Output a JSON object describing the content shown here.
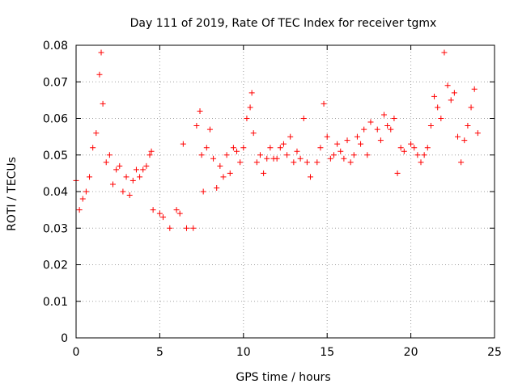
{
  "chart_data": {
    "type": "scatter",
    "title": "Day 111 of 2019, Rate Of TEC Index for receiver tgmx",
    "xlabel": "GPS time / hours",
    "ylabel": "ROTI / TECUs",
    "xlim": [
      0,
      25
    ],
    "ylim": [
      0,
      0.08
    ],
    "xticks": [
      "0",
      "5",
      "10",
      "15",
      "20",
      "25"
    ],
    "yticks": [
      "0",
      "0.01",
      "0.02",
      "0.03",
      "0.04",
      "0.05",
      "0.06",
      "0.07",
      "0.08"
    ],
    "grid": true,
    "marker": "+",
    "color": "#ff0000",
    "series": [
      {
        "name": "ROTI",
        "x": [
          0.0,
          0.2,
          0.4,
          0.6,
          0.8,
          1.0,
          1.2,
          1.4,
          1.5,
          1.6,
          1.8,
          2.0,
          2.2,
          2.4,
          2.6,
          2.8,
          3.0,
          3.2,
          3.4,
          3.6,
          3.8,
          4.0,
          4.2,
          4.4,
          4.5,
          4.6,
          5.0,
          5.2,
          5.6,
          6.0,
          6.2,
          6.4,
          6.6,
          7.0,
          7.2,
          7.4,
          7.5,
          7.6,
          7.8,
          8.0,
          8.2,
          8.4,
          8.6,
          8.8,
          9.0,
          9.2,
          9.4,
          9.6,
          9.8,
          10.0,
          10.2,
          10.4,
          10.5,
          10.6,
          10.8,
          11.0,
          11.2,
          11.4,
          11.6,
          11.8,
          12.0,
          12.2,
          12.4,
          12.6,
          12.8,
          13.0,
          13.2,
          13.4,
          13.6,
          13.8,
          14.0,
          14.4,
          14.6,
          14.8,
          15.0,
          15.2,
          15.4,
          15.6,
          15.8,
          16.0,
          16.2,
          16.4,
          16.6,
          16.8,
          17.0,
          17.2,
          17.4,
          17.6,
          18.0,
          18.2,
          18.4,
          18.6,
          18.8,
          19.0,
          19.2,
          19.4,
          19.6,
          20.0,
          20.2,
          20.4,
          20.6,
          20.8,
          21.0,
          21.2,
          21.4,
          21.6,
          21.8,
          22.0,
          22.2,
          22.4,
          22.6,
          22.8,
          23.0,
          23.2,
          23.4,
          23.6,
          23.8,
          24.0
        ],
        "y": [
          0.043,
          0.035,
          0.038,
          0.04,
          0.044,
          0.052,
          0.056,
          0.072,
          0.078,
          0.064,
          0.048,
          0.05,
          0.042,
          0.046,
          0.047,
          0.04,
          0.044,
          0.039,
          0.043,
          0.046,
          0.044,
          0.046,
          0.047,
          0.05,
          0.051,
          0.035,
          0.034,
          0.033,
          0.03,
          0.035,
          0.034,
          0.053,
          0.03,
          0.03,
          0.058,
          0.062,
          0.05,
          0.04,
          0.052,
          0.057,
          0.049,
          0.041,
          0.047,
          0.044,
          0.05,
          0.045,
          0.052,
          0.051,
          0.048,
          0.052,
          0.06,
          0.063,
          0.067,
          0.056,
          0.048,
          0.05,
          0.045,
          0.049,
          0.052,
          0.049,
          0.049,
          0.052,
          0.053,
          0.05,
          0.055,
          0.048,
          0.051,
          0.049,
          0.06,
          0.048,
          0.044,
          0.048,
          0.052,
          0.064,
          0.055,
          0.049,
          0.05,
          0.053,
          0.051,
          0.049,
          0.054,
          0.048,
          0.05,
          0.055,
          0.053,
          0.057,
          0.05,
          0.059,
          0.057,
          0.054,
          0.061,
          0.058,
          0.057,
          0.06,
          0.045,
          0.052,
          0.051,
          0.053,
          0.052,
          0.05,
          0.048,
          0.05,
          0.052,
          0.058,
          0.066,
          0.063,
          0.06,
          0.078,
          0.069,
          0.065,
          0.067,
          0.055,
          0.048,
          0.054,
          0.058,
          0.063,
          0.068,
          0.056
        ]
      }
    ]
  }
}
